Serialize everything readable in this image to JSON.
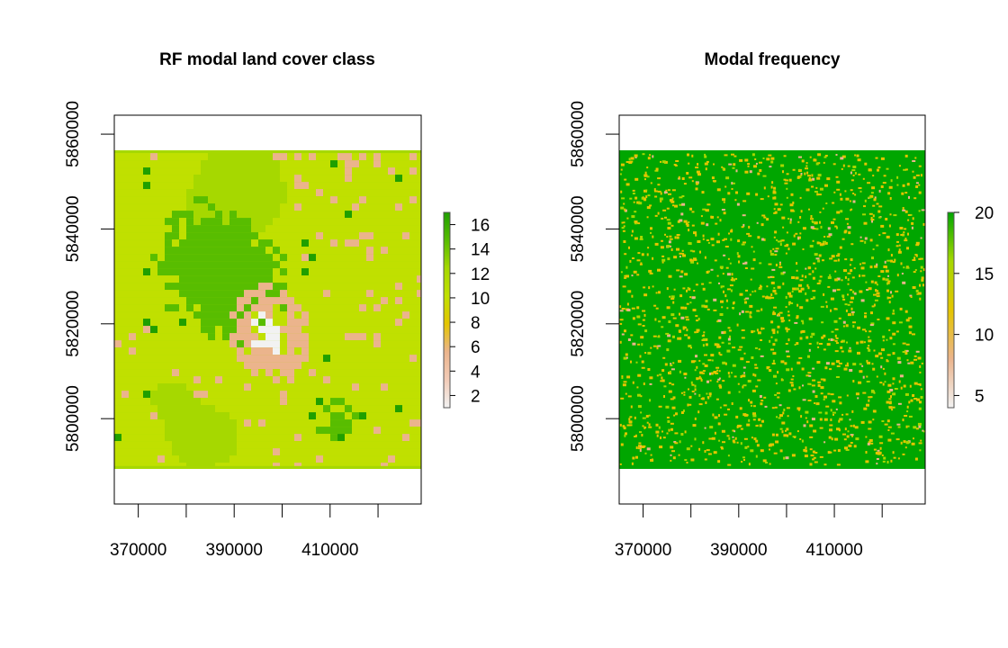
{
  "colors": {
    "land_cover_ramp": [
      "#f2f2f2",
      "#f2cbb7",
      "#ebb48c",
      "#e4c500",
      "#c0e000",
      "#a6d800",
      "#58bd00",
      "#1f9f00"
    ],
    "frequency_ramp": [
      "#f2f2f2",
      "#ebb48c",
      "#e4c500",
      "#a6d800",
      "#00a600"
    ],
    "frame": "#000000",
    "background": "#ffffff"
  },
  "chart_data": [
    {
      "type": "heatmap",
      "title": "RF modal land cover class",
      "xlabel": "",
      "ylabel": "",
      "xlim": [
        365000,
        429000
      ],
      "ylim": [
        5782000,
        5864000
      ],
      "raster_extent": {
        "x": [
          365000,
          429000
        ],
        "y": [
          5790000,
          5856000
        ]
      },
      "x_ticks": [
        370000,
        380000,
        390000,
        400000,
        410000,
        420000
      ],
      "x_tick_labels": [
        "370000",
        "",
        "390000",
        "",
        "410000",
        ""
      ],
      "y_ticks": [
        5800000,
        5820000,
        5840000,
        5860000
      ],
      "y_tick_labels": [
        "5800000",
        "5820000",
        "5840000",
        "5860000"
      ],
      "legend": {
        "placement": "right",
        "range": [
          1,
          17
        ],
        "ticks": [
          2,
          4,
          6,
          8,
          10,
          12,
          14,
          16
        ],
        "tick_labels": [
          "2",
          "4",
          "6",
          "8",
          "10",
          "12",
          "14",
          "16"
        ]
      },
      "grid": false
    },
    {
      "type": "heatmap",
      "title": "Modal frequency",
      "xlabel": "",
      "ylabel": "",
      "xlim": [
        365000,
        429000
      ],
      "ylim": [
        5782000,
        5864000
      ],
      "raster_extent": {
        "x": [
          365000,
          429000
        ],
        "y": [
          5790000,
          5856000
        ]
      },
      "x_ticks": [
        370000,
        380000,
        390000,
        400000,
        410000,
        420000
      ],
      "x_tick_labels": [
        "370000",
        "",
        "390000",
        "",
        "410000",
        ""
      ],
      "y_ticks": [
        5800000,
        5820000,
        5840000,
        5860000
      ],
      "y_tick_labels": [
        "5800000",
        "5820000",
        "5840000",
        "5860000"
      ],
      "legend": {
        "placement": "right",
        "range": [
          4,
          20
        ],
        "ticks": [
          5,
          10,
          15,
          20
        ],
        "tick_labels": [
          "5",
          "10",
          "15",
          "20"
        ]
      },
      "grid": false
    }
  ]
}
